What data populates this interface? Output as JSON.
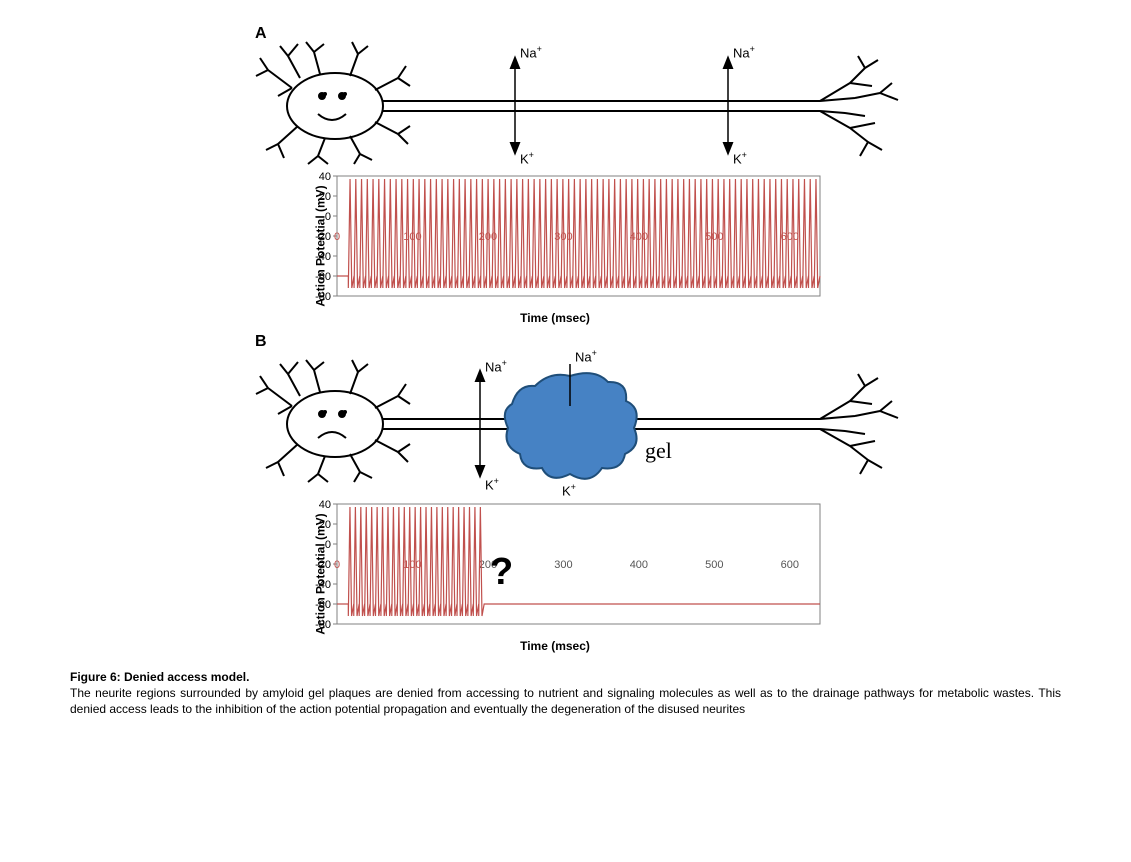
{
  "panelA": {
    "label": "A",
    "ions": {
      "na1": "Na",
      "na2": "Na",
      "k1": "K",
      "k2": "K"
    },
    "chart": {
      "type": "spike-train",
      "yLabel": "Action Potential (mV)",
      "xLabel": "Time (msec)",
      "yTicks": [
        "40",
        "20",
        "0",
        "-20",
        "-40",
        "-60",
        "-80"
      ],
      "xTicks": [
        "0",
        "100",
        "200",
        "300",
        "400",
        "500",
        "600"
      ],
      "xTickColor": "#c0504d",
      "yMin": -80,
      "yMax": 40,
      "spikeStart": 15,
      "spikeEnd": 640,
      "spikeTop": 37,
      "spikeBottom": -72,
      "restLevel": -60,
      "spikeCount": 82,
      "spikeColor": "#c0504d",
      "spikeWidth": 1.2,
      "axisColor": "#808080",
      "background": "#ffffff"
    }
  },
  "panelB": {
    "label": "B",
    "ions": {
      "na1": "Na",
      "na2": "Na",
      "k1": "K",
      "k2": "K"
    },
    "gelLabel": "gel",
    "gelColor": "#4682c4",
    "chart": {
      "type": "spike-train-interrupted",
      "yLabel": "Action Potential (mV)",
      "xLabel": "Time (msec)",
      "yTicks": [
        "40",
        "20",
        "0",
        "-20",
        "-40",
        "-60",
        "-80"
      ],
      "xTicks": [
        "0",
        "100",
        "200",
        "300",
        "400",
        "500",
        "600"
      ],
      "xTickColor": "#444444",
      "yMin": -80,
      "yMax": 40,
      "spikeStart": 15,
      "spikeEnd": 195,
      "spikeTop": 37,
      "spikeBottom": -72,
      "restLevel": -60,
      "spikeCount": 25,
      "spikeColor": "#c0504d",
      "spikeWidth": 1.2,
      "axisColor": "#808080",
      "background": "#ffffff",
      "questionMarkX": 222
    }
  },
  "caption": {
    "figureLabel": "Figure 6:",
    "title": "Denied access model.",
    "body": "The neurite regions surrounded by amyloid gel plaques are denied from accessing to nutrient and signaling molecules as well as to the drainage pathways for metabolic wastes. This denied access leads to the inhibition of the action potential propagation and eventually the degeneration of the disused neurites"
  },
  "neuronStroke": "#000000",
  "neuronStrokeWidth": 2
}
